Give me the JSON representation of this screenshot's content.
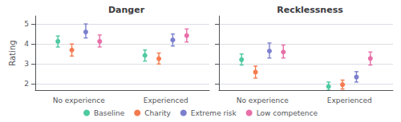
{
  "chart_data": [
    {
      "type": "scatter",
      "title": "Danger",
      "ylabel": "Rating",
      "categories": [
        "No experience",
        "Experienced"
      ],
      "series": [
        {
          "name": "Baseline",
          "color": "#4ec9a0",
          "values": [
            4.13,
            3.43
          ],
          "low": [
            3.85,
            3.15
          ],
          "high": [
            4.4,
            3.7
          ]
        },
        {
          "name": "Charity",
          "color": "#f47b4f",
          "values": [
            3.7,
            3.27
          ],
          "low": [
            3.4,
            3.0
          ],
          "high": [
            4.0,
            3.55
          ]
        },
        {
          "name": "Extreme risk",
          "color": "#7b7fcc",
          "values": [
            4.6,
            4.2
          ],
          "low": [
            4.3,
            3.9
          ],
          "high": [
            5.0,
            4.5
          ]
        },
        {
          "name": "Low competence",
          "color": "#e86fa8",
          "values": [
            4.13,
            4.42
          ],
          "low": [
            3.85,
            4.1
          ],
          "high": [
            4.45,
            4.75
          ]
        }
      ],
      "ylim": [
        1.7,
        5.4
      ],
      "yticks": [
        2,
        3,
        4,
        5
      ],
      "grid": true,
      "legend": "bottom",
      "marker": "circle"
    },
    {
      "type": "scatter",
      "title": "Recklessness",
      "categories": [
        "No experience",
        "Experienced"
      ],
      "series": [
        {
          "name": "Baseline",
          "color": "#4ec9a0",
          "values": [
            3.22,
            1.88
          ],
          "low": [
            2.95,
            1.7
          ],
          "high": [
            3.5,
            2.1
          ]
        },
        {
          "name": "Charity",
          "color": "#f47b4f",
          "values": [
            2.6,
            1.97
          ],
          "low": [
            2.3,
            1.75
          ],
          "high": [
            2.9,
            2.2
          ]
        },
        {
          "name": "Extreme risk",
          "color": "#7b7fcc",
          "values": [
            3.65,
            2.35
          ],
          "low": [
            3.3,
            2.1
          ],
          "high": [
            4.05,
            2.62
          ]
        },
        {
          "name": "Low competence",
          "color": "#e86fa8",
          "values": [
            3.6,
            3.28
          ],
          "low": [
            3.3,
            2.95
          ],
          "high": [
            3.95,
            3.6
          ]
        }
      ],
      "ylim": [
        1.7,
        5.4
      ],
      "yticks": [
        2,
        3,
        4,
        5
      ],
      "grid": true,
      "legend": "bottom",
      "marker": "circle",
      "tick_labels": "x"
    }
  ]
}
